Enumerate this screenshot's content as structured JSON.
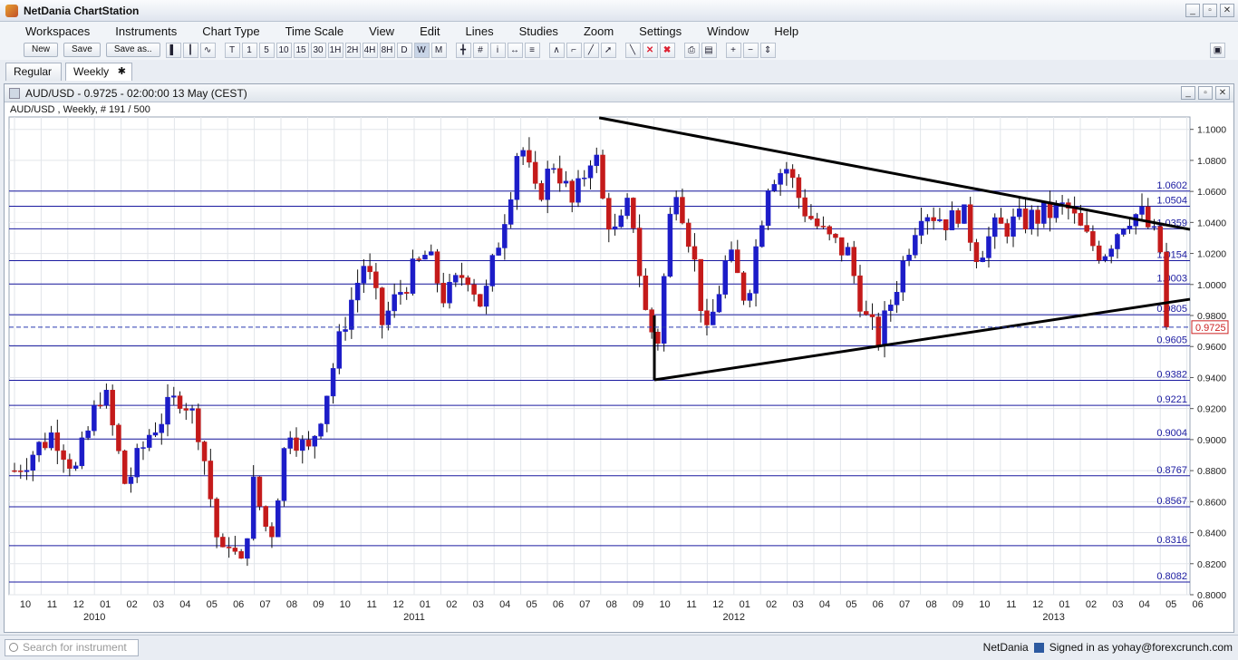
{
  "app": {
    "title": "NetDania ChartStation",
    "window_buttons": [
      "_",
      "▫",
      "✕"
    ]
  },
  "menu": [
    "Workspaces",
    "Instruments",
    "Chart Type",
    "Time Scale",
    "View",
    "Edit",
    "Lines",
    "Studies",
    "Zoom",
    "Settings",
    "Window",
    "Help"
  ],
  "toolbar": {
    "new_label": "New",
    "save_label": "Save",
    "saveas_label": "Save as..",
    "timeframes": [
      "T",
      "1",
      "5",
      "10",
      "15",
      "30",
      "1H",
      "2H",
      "4H",
      "8H",
      "D",
      "W",
      "M"
    ],
    "tool_icons": [
      "bar-chart-icon",
      "candlestick-icon",
      "line-chart-icon",
      "crosshair-icon",
      "grid-icon",
      "info-icon",
      "scroll-icon",
      "volume-icon",
      "trend-tool-icon",
      "fib-tool-icon",
      "cycle-tool-icon",
      "pointer-tool-icon",
      "draw-line-icon",
      "delete-icon",
      "delete-all-icon",
      "print-icon",
      "print-preview-icon",
      "zoom-in-icon",
      "zoom-out-icon",
      "zoom-fit-icon"
    ]
  },
  "tabs": [
    {
      "label": "Regular"
    },
    {
      "label": "Weekly"
    }
  ],
  "chart_window": {
    "header": "AUD/USD - 0.9725 - 02:00:00  13 May (CEST)",
    "subtitle": "AUD/USD , Weekly, # 191 / 500"
  },
  "chart_data": {
    "type": "candlestick",
    "title": "AUD/USD",
    "ylim": [
      0.8,
      1.108
    ],
    "y_ticks": [
      "1.1000",
      "1.0800",
      "1.0600",
      "1.0400",
      "1.0200",
      "1.0000",
      "0.9800",
      "0.9600",
      "0.9400",
      "0.9200",
      "0.9000",
      "0.8800",
      "0.8600",
      "0.8400",
      "0.8200",
      "0.8000"
    ],
    "months": [
      "10",
      "11",
      "12",
      "01",
      "02",
      "03",
      "04",
      "05",
      "06",
      "07",
      "08",
      "09",
      "10",
      "11",
      "12",
      "01",
      "02",
      "03",
      "04",
      "05",
      "06",
      "07",
      "08",
      "09",
      "10",
      "11",
      "12",
      "01",
      "02",
      "03",
      "04",
      "05",
      "06",
      "07",
      "08",
      "09",
      "10",
      "11",
      "12",
      "01",
      "02",
      "03",
      "04",
      "05",
      "06"
    ],
    "years": [
      {
        "label": "2010",
        "month_index": 3
      },
      {
        "label": "2011",
        "month_index": 15
      },
      {
        "label": "2012",
        "month_index": 27
      },
      {
        "label": "2013",
        "month_index": 39
      }
    ],
    "x_start": "2009-10-01",
    "horizontal_levels": [
      {
        "value": 1.0602,
        "label": "1.0602",
        "color": "#1a1aa0"
      },
      {
        "value": 1.0504,
        "label": "1.0504",
        "color": "#1a1aa0"
      },
      {
        "value": 1.0359,
        "label": "1.0359",
        "color": "#1a1aa0"
      },
      {
        "value": 1.0154,
        "label": "1.0154",
        "color": "#1a1aa0"
      },
      {
        "value": 1.0003,
        "label": "1.0003",
        "color": "#1a1aa0"
      },
      {
        "value": 0.9805,
        "label": "0.9805",
        "color": "#1a1aa0"
      },
      {
        "value": 0.9605,
        "label": "0.9605",
        "color": "#1a1aa0"
      },
      {
        "value": 0.9382,
        "label": "0.9382",
        "color": "#1a1aa0"
      },
      {
        "value": 0.9221,
        "label": "0.9221",
        "color": "#1a1aa0"
      },
      {
        "value": 0.9004,
        "label": "0.9004",
        "color": "#1a1aa0"
      },
      {
        "value": 0.8767,
        "label": "0.8767",
        "color": "#1a1aa0"
      },
      {
        "value": 0.8567,
        "label": "0.8567",
        "color": "#1a1aa0"
      },
      {
        "value": 0.8316,
        "label": "0.8316",
        "color": "#1a1aa0"
      },
      {
        "value": 0.8082,
        "label": "0.8082",
        "color": "#1a1aa0"
      }
    ],
    "current_price": {
      "value": 0.9725,
      "label": "0.9725",
      "color": "#cc2222"
    },
    "trendlines": [
      {
        "name": "upper-trendline",
        "from": {
          "date": "2011-07-31",
          "value": 1.1075
        },
        "to": {
          "date": "2013-06-20",
          "value": 1.0355
        }
      },
      {
        "name": "lower-trendline",
        "from": {
          "date": "2011-10-02",
          "value": 0.9385
        },
        "to": {
          "date": "2013-06-20",
          "value": 0.9905
        }
      },
      {
        "name": "vertical-marker",
        "from": {
          "date": "2011-10-02",
          "value": 0.9385
        },
        "to": {
          "date": "2011-10-02",
          "value": 0.98
        }
      }
    ],
    "anchors": [
      [
        "2009-10-01",
        0.88
      ],
      [
        "2009-11-15",
        0.905
      ],
      [
        "2009-12-10",
        0.88
      ],
      [
        "2010-01-10",
        0.935
      ],
      [
        "2010-02-05",
        0.87
      ],
      [
        "2010-03-05",
        0.905
      ],
      [
        "2010-04-10",
        0.93
      ],
      [
        "2010-05-01",
        0.905
      ],
      [
        "2010-05-25",
        0.82
      ],
      [
        "2010-06-05",
        0.84
      ],
      [
        "2010-06-15",
        0.81
      ],
      [
        "2010-07-01",
        0.87
      ],
      [
        "2010-07-20",
        0.835
      ],
      [
        "2010-08-10",
        0.91
      ],
      [
        "2010-09-01",
        0.89
      ],
      [
        "2010-09-20",
        0.925
      ],
      [
        "2010-10-15",
        0.98
      ],
      [
        "2010-11-05",
        1.015
      ],
      [
        "2010-11-25",
        0.975
      ],
      [
        "2010-12-20",
        1.0
      ],
      [
        "2011-01-15",
        1.02
      ],
      [
        "2011-02-05",
        0.99
      ],
      [
        "2011-03-01",
        1.01
      ],
      [
        "2011-03-20",
        0.985
      ],
      [
        "2011-04-20",
        1.06
      ],
      [
        "2011-05-01",
        1.095
      ],
      [
        "2011-05-20",
        1.055
      ],
      [
        "2011-06-10",
        1.08
      ],
      [
        "2011-07-01",
        1.05
      ],
      [
        "2011-07-25",
        1.09
      ],
      [
        "2011-08-05",
        1.05
      ],
      [
        "2011-08-20",
        1.03
      ],
      [
        "2011-09-05",
        1.055
      ],
      [
        "2011-09-20",
        0.985
      ],
      [
        "2011-10-05",
        0.96
      ],
      [
        "2011-10-25",
        1.07
      ],
      [
        "2011-11-15",
        1.02
      ],
      [
        "2011-12-01",
        0.965
      ],
      [
        "2011-12-25",
        1.02
      ],
      [
        "2012-01-15",
        0.99
      ],
      [
        "2012-02-10",
        1.07
      ],
      [
        "2012-03-01",
        1.075
      ],
      [
        "2012-03-20",
        1.05
      ],
      [
        "2012-04-15",
        1.03
      ],
      [
        "2012-05-10",
        1.02
      ],
      [
        "2012-06-01",
        0.975
      ],
      [
        "2012-06-15",
        0.965
      ],
      [
        "2012-07-10",
        1.01
      ],
      [
        "2012-08-01",
        1.05
      ],
      [
        "2012-09-05",
        1.04
      ],
      [
        "2012-09-15",
        1.05
      ],
      [
        "2012-10-05",
        1.02
      ],
      [
        "2012-10-25",
        1.035
      ],
      [
        "2012-11-20",
        1.04
      ],
      [
        "2012-12-20",
        1.045
      ],
      [
        "2013-01-15",
        1.05
      ],
      [
        "2013-02-05",
        1.03
      ],
      [
        "2013-02-25",
        1.02
      ],
      [
        "2013-03-25",
        1.045
      ],
      [
        "2013-04-10",
        1.045
      ],
      [
        "2013-04-25",
        1.03
      ],
      [
        "2013-05-01",
        1.03
      ],
      [
        "2013-05-05",
        0.995
      ],
      [
        "2013-05-13",
        0.9725
      ]
    ]
  },
  "statusbar": {
    "search_placeholder": "Search for instrument",
    "brand": "NetDania",
    "signed_in": "Signed in as yohay@forexcrunch.com"
  }
}
